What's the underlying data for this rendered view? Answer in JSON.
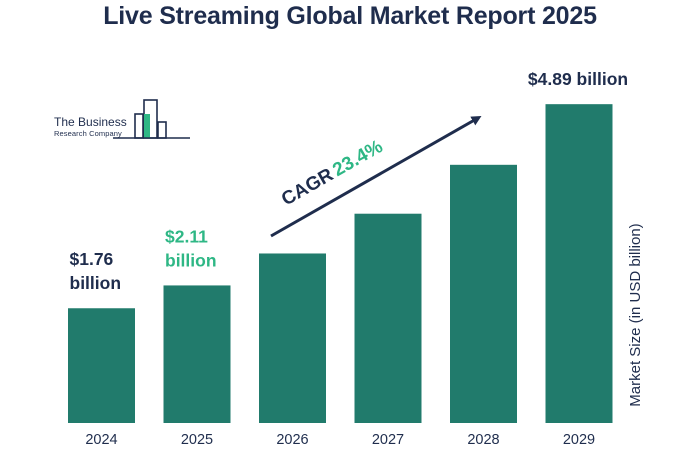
{
  "chart_data": {
    "type": "bar",
    "title": "Live Streaming Global Market Report 2025",
    "ylabel": "Market Size (in USD billion)",
    "categories": [
      "2024",
      "2025",
      "2026",
      "2027",
      "2028",
      "2029"
    ],
    "values": [
      1.76,
      2.11,
      2.6,
      3.21,
      3.96,
      4.89
    ],
    "ylim": [
      0,
      5.6
    ],
    "grid": false,
    "data_labels": [
      {
        "category": "2024",
        "lines": [
          "$1.76",
          "billion"
        ],
        "color": "#1f2d4d"
      },
      {
        "category": "2025",
        "lines": [
          "$2.11",
          "billion"
        ],
        "color": "#2eb785"
      },
      {
        "category": "2029",
        "lines": [
          "$4.89 billion"
        ],
        "color": "#1f2d4d"
      }
    ],
    "annotation": {
      "label": "CAGR",
      "value": "23.4%",
      "label_color": "#1f2d4d",
      "value_color": "#2eb785"
    },
    "colors": {
      "bar": "#217b6c",
      "text": "#1f2d4d",
      "accent": "#2eb785"
    }
  },
  "logo": {
    "line1": "The Business",
    "line2": "Research Company"
  }
}
